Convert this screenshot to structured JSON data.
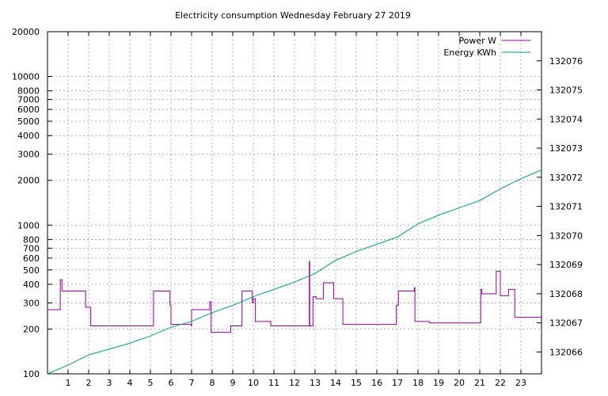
{
  "chart_data": {
    "type": "line",
    "title": "Electricity consumption Wednesday February 27 2019",
    "xlim": [
      0,
      24
    ],
    "x_ticks": [
      1,
      2,
      3,
      4,
      5,
      6,
      7,
      8,
      9,
      10,
      11,
      12,
      13,
      14,
      15,
      16,
      17,
      18,
      19,
      20,
      21,
      22,
      23
    ],
    "y_left": {
      "scale": "log",
      "lim": [
        100,
        20000
      ],
      "ticks": [
        100,
        200,
        300,
        400,
        500,
        600,
        700,
        800,
        1000,
        2000,
        3000,
        4000,
        5000,
        6000,
        7000,
        8000,
        10000,
        20000
      ],
      "grid_ticks": [
        200,
        300,
        400,
        500,
        600,
        700,
        800,
        1000,
        2000,
        3000,
        4000,
        5000,
        6000,
        7000,
        8000,
        10000
      ]
    },
    "y_right": {
      "scale": "linear",
      "lim": [
        132065.25,
        132077.0
      ],
      "ticks": [
        132066,
        132067,
        132068,
        132069,
        132070,
        132071,
        132072,
        132073,
        132074,
        132075,
        132076
      ]
    },
    "grid": true,
    "legend_position": "top-right",
    "series": [
      {
        "name": "Power W",
        "axis": "left",
        "color": "#94009a",
        "step": true,
        "points": [
          [
            0.0,
            270
          ],
          [
            0.6,
            270
          ],
          [
            0.62,
            430
          ],
          [
            0.7,
            360
          ],
          [
            1.8,
            360
          ],
          [
            1.85,
            280
          ],
          [
            2.0,
            280
          ],
          [
            2.1,
            210
          ],
          [
            5.1,
            210
          ],
          [
            5.15,
            360
          ],
          [
            5.9,
            360
          ],
          [
            5.95,
            290
          ],
          [
            6.0,
            215
          ],
          [
            6.95,
            215
          ],
          [
            6.98,
            210
          ],
          [
            7.0,
            270
          ],
          [
            7.85,
            270
          ],
          [
            7.88,
            305
          ],
          [
            7.95,
            190
          ],
          [
            8.85,
            190
          ],
          [
            8.9,
            210
          ],
          [
            9.4,
            210
          ],
          [
            9.45,
            360
          ],
          [
            9.9,
            360
          ],
          [
            9.95,
            300
          ],
          [
            10.0,
            320
          ],
          [
            10.1,
            225
          ],
          [
            10.8,
            225
          ],
          [
            10.85,
            210
          ],
          [
            12.7,
            210
          ],
          [
            12.72,
            570
          ],
          [
            12.74,
            210
          ],
          [
            12.85,
            210
          ],
          [
            12.9,
            330
          ],
          [
            13.05,
            320
          ],
          [
            13.35,
            320
          ],
          [
            13.4,
            410
          ],
          [
            13.85,
            410
          ],
          [
            13.9,
            320
          ],
          [
            14.3,
            320
          ],
          [
            14.35,
            215
          ],
          [
            16.9,
            215
          ],
          [
            16.95,
            290
          ],
          [
            17.05,
            360
          ],
          [
            17.8,
            360
          ],
          [
            17.82,
            380
          ],
          [
            17.85,
            225
          ],
          [
            18.5,
            225
          ],
          [
            18.55,
            220
          ],
          [
            21.0,
            220
          ],
          [
            21.05,
            370
          ],
          [
            21.1,
            345
          ],
          [
            21.75,
            345
          ],
          [
            21.8,
            490
          ],
          [
            21.95,
            490
          ],
          [
            22.0,
            335
          ],
          [
            22.35,
            335
          ],
          [
            22.4,
            370
          ],
          [
            22.65,
            370
          ],
          [
            22.7,
            240
          ],
          [
            24.0,
            240
          ]
        ]
      },
      {
        "name": "Energy KWh",
        "axis": "right",
        "color": "#009e73",
        "step": false,
        "points": [
          [
            0.0,
            132065.25
          ],
          [
            1.0,
            132065.55
          ],
          [
            2.0,
            132065.9
          ],
          [
            3.0,
            132066.1
          ],
          [
            4.0,
            132066.3
          ],
          [
            5.0,
            132066.55
          ],
          [
            6.0,
            132066.85
          ],
          [
            7.0,
            132067.05
          ],
          [
            8.0,
            132067.35
          ],
          [
            9.0,
            132067.6
          ],
          [
            10.0,
            132067.9
          ],
          [
            11.0,
            132068.15
          ],
          [
            12.0,
            132068.4
          ],
          [
            13.0,
            132068.7
          ],
          [
            14.0,
            132069.15
          ],
          [
            15.0,
            132069.45
          ],
          [
            16.0,
            132069.7
          ],
          [
            17.0,
            132069.95
          ],
          [
            18.0,
            132070.4
          ],
          [
            19.0,
            132070.7
          ],
          [
            20.0,
            132070.95
          ],
          [
            21.0,
            132071.2
          ],
          [
            22.0,
            132071.6
          ],
          [
            23.0,
            132071.95
          ],
          [
            24.0,
            132072.25
          ]
        ]
      }
    ]
  }
}
